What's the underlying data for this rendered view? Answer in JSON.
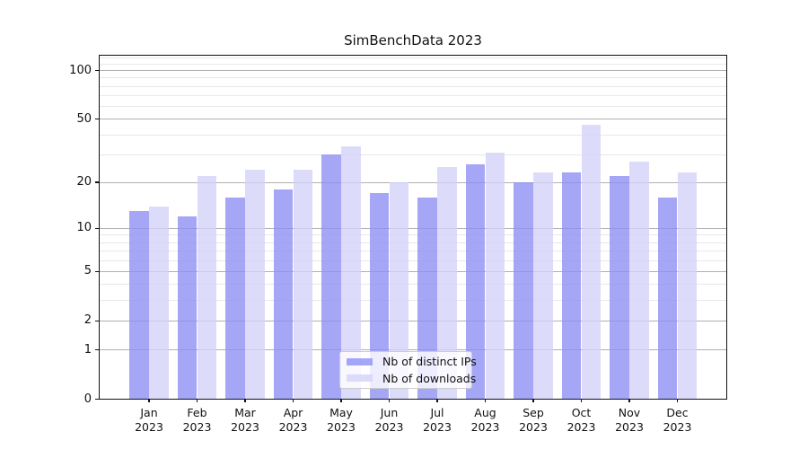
{
  "title": "SimBenchData 2023",
  "chart_data": {
    "type": "bar",
    "title": "SimBenchData 2023",
    "categories": [
      "Jan 2023",
      "Feb 2023",
      "Mar 2023",
      "Apr 2023",
      "May 2023",
      "Jun 2023",
      "Jul 2023",
      "Aug 2023",
      "Sep 2023",
      "Oct 2023",
      "Nov 2023",
      "Dec 2023"
    ],
    "month_labels": [
      "Jan",
      "Feb",
      "Mar",
      "Apr",
      "May",
      "Jun",
      "Jul",
      "Aug",
      "Sep",
      "Oct",
      "Nov",
      "Dec"
    ],
    "year_label": "2023",
    "series": [
      {
        "name": "Nb of distinct IPs",
        "color": "#9090f5",
        "alpha": 0.8,
        "values": [
          13,
          12,
          16,
          18,
          30,
          17,
          16,
          26,
          20,
          23,
          22,
          16
        ]
      },
      {
        "name": "Nb of downloads",
        "color": "#d3d3f9",
        "alpha": 0.8,
        "values": [
          14,
          22,
          24,
          24,
          34,
          20,
          25,
          31,
          23,
          46,
          27,
          23
        ]
      }
    ],
    "xlabel": "",
    "ylabel": "",
    "yscale": "log10(1+x)",
    "y_major_ticks": [
      0,
      1,
      2,
      5,
      10,
      20,
      50,
      100
    ],
    "y_minor_gridlines": [
      3,
      4,
      6,
      7,
      8,
      9,
      30,
      40,
      60,
      70,
      80,
      90,
      110,
      120
    ],
    "ylim": [
      0,
      125
    ],
    "grid": true,
    "legend_position": "lower center (inside axes)",
    "colors": {
      "major_grid": "#b0b0b0",
      "minor_grid": "#e8e8e8",
      "axis": "#111111",
      "background": "#ffffff"
    }
  }
}
